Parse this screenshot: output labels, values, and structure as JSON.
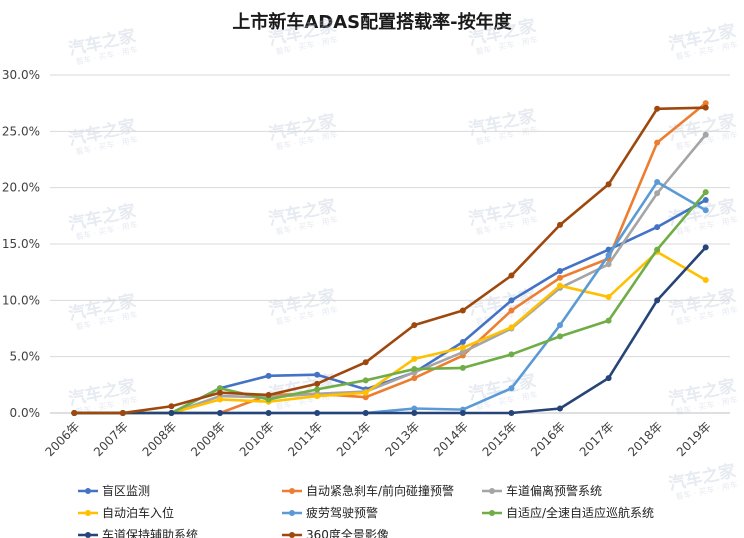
{
  "chart_data": {
    "type": "line",
    "title": "上市新车ADAS配置搭载率-按年度",
    "xlabel": "",
    "ylabel": "",
    "ylim": [
      0,
      0.3
    ],
    "y_ticks": [
      "0.0%",
      "5.0%",
      "10.0%",
      "15.0%",
      "20.0%",
      "25.0%",
      "30.0%"
    ],
    "categories": [
      "2006年",
      "2007年",
      "2008年",
      "2009年",
      "2010年",
      "2011年",
      "2012年",
      "2013年",
      "2014年",
      "2015年",
      "2016年",
      "2017年",
      "2018年",
      "2019年"
    ],
    "grid": true,
    "legend_position": "bottom",
    "series": [
      {
        "name": "盲区监测",
        "color": "#4472C4",
        "values": [
          0,
          0,
          0,
          0.022,
          0.033,
          0.034,
          0.021,
          0.036,
          0.063,
          0.1,
          0.126,
          0.145,
          0.165,
          0.189
        ]
      },
      {
        "name": "自动紧急刹车/前向碰撞预警",
        "color": "#ED7D31",
        "values": [
          0,
          0,
          0,
          0,
          0.016,
          0.017,
          0.014,
          0.031,
          0.051,
          0.091,
          0.12,
          0.137,
          0.24,
          0.275
        ]
      },
      {
        "name": "车道偏离预警系统",
        "color": "#A5A5A5",
        "values": [
          0,
          0,
          0,
          0.015,
          0.014,
          0.017,
          0.019,
          0.036,
          0.054,
          0.075,
          0.111,
          0.132,
          0.195,
          0.247
        ]
      },
      {
        "name": "自动泊车入位",
        "color": "#FFC000",
        "values": [
          0,
          0,
          0,
          0.012,
          0.01,
          0.015,
          0.018,
          0.048,
          0.058,
          0.076,
          0.113,
          0.103,
          0.143,
          0.118
        ]
      },
      {
        "name": "疲劳驾驶预警",
        "color": "#5B9BD5",
        "values": [
          0,
          0,
          0,
          0,
          0,
          0,
          0,
          0.004,
          0.003,
          0.022,
          0.078,
          0.14,
          0.205,
          0.18
        ]
      },
      {
        "name": "自适应/全速自适应巡航系统",
        "color": "#70AD47",
        "values": [
          0,
          0,
          0,
          0.022,
          0.012,
          0.021,
          0.029,
          0.039,
          0.04,
          0.052,
          0.068,
          0.082,
          0.145,
          0.196
        ]
      },
      {
        "name": "车道保持辅助系统",
        "color": "#264478",
        "values": [
          0,
          0,
          0,
          0,
          0,
          0,
          0,
          0,
          0,
          0,
          0.004,
          0.031,
          0.1,
          0.147
        ]
      },
      {
        "name": "360度全景影像",
        "color": "#9E480E",
        "values": [
          0,
          0,
          0.006,
          0.018,
          0.016,
          0.026,
          0.045,
          0.078,
          0.091,
          0.122,
          0.167,
          0.203,
          0.27,
          0.271
        ]
      }
    ]
  },
  "watermark": {
    "logo": "汽车之家",
    "sub": "看车 · 买车 · 用车"
  }
}
